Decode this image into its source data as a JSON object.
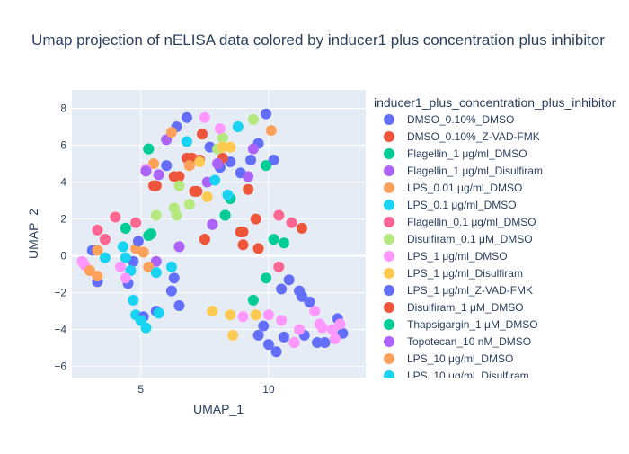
{
  "chart_data": {
    "type": "scatter",
    "title": "Umap projection of nELISA data colored by inducer1 plus concentration plus inhibitor",
    "xlabel": "UMAP_1",
    "ylabel": "UMAP_2",
    "xlim": [
      2.3,
      13.8
    ],
    "ylim": [
      -6.6,
      9.0
    ],
    "xticks": [
      5,
      10
    ],
    "yticks": [
      -6,
      -4,
      -2,
      0,
      2,
      4,
      6,
      8
    ],
    "grid": true,
    "legend_title": "inducer1_plus_concentration_plus_inhibitor",
    "legend_position": "right",
    "series": [
      {
        "name": "DMSO_0.10%_DMSO",
        "color": "#636efa",
        "points": [
          [
            3.1,
            0.3
          ],
          [
            3.3,
            -1.4
          ],
          [
            4.7,
            -0.3
          ],
          [
            6.0,
            4.9
          ],
          [
            6.4,
            7.0
          ],
          [
            6.8,
            7.5
          ],
          [
            7.7,
            5.9
          ],
          [
            8.1,
            4.8
          ],
          [
            8.5,
            5.1
          ],
          [
            8.9,
            4.5
          ],
          [
            9.3,
            5.2
          ],
          [
            9.6,
            6.1
          ],
          [
            9.9,
            7.7
          ],
          [
            10.2,
            5.2
          ],
          [
            6.2,
            -1.9
          ],
          [
            10.5,
            -1.8
          ],
          [
            11.2,
            -1.9
          ],
          [
            12.2,
            -4.7
          ],
          [
            12.7,
            -3.4
          ],
          [
            12.9,
            -4.2
          ],
          [
            10.6,
            -4.4
          ],
          [
            11.0,
            -4.7
          ],
          [
            11.4,
            -4.3
          ],
          [
            10.0,
            -4.8
          ],
          [
            10.3,
            -5.2
          ],
          [
            4.5,
            -1.5
          ]
        ]
      },
      {
        "name": "DMSO_0.10%_Z-VAD-FMK",
        "color": "#ef553b",
        "points": [
          [
            5.5,
            3.8
          ],
          [
            6.5,
            4.3
          ],
          [
            7.0,
            5.3
          ],
          [
            7.2,
            3.5
          ],
          [
            7.3,
            5.2
          ],
          [
            7.4,
            6.6
          ],
          [
            7.5,
            0.9
          ],
          [
            8.2,
            5.3
          ],
          [
            9.2,
            3.6
          ],
          [
            9.5,
            2.0
          ],
          [
            9.0,
            1.3
          ],
          [
            9.6,
            0.4
          ],
          [
            9.0,
            0.6
          ],
          [
            11.3,
            1.5
          ],
          [
            6.8,
            5.3
          ]
        ]
      },
      {
        "name": "Flagellin_1 μg/ml_DMSO",
        "color": "#00cc96",
        "points": [
          [
            5.3,
            5.8
          ],
          [
            5.3,
            1.1
          ],
          [
            5.4,
            1.2
          ],
          [
            4.4,
            1.5
          ],
          [
            8.5,
            3.1
          ],
          [
            8.3,
            2.2
          ],
          [
            9.9,
            4.9
          ],
          [
            10.2,
            0.9
          ],
          [
            10.6,
            0.7
          ],
          [
            9.9,
            -1.2
          ],
          [
            9.4,
            -2.4
          ]
        ]
      },
      {
        "name": "Flagellin_1 μg/ml_Disulfiram",
        "color": "#ab63fa",
        "points": [
          [
            5.2,
            4.6
          ],
          [
            5.7,
            4.4
          ],
          [
            6.0,
            6.3
          ],
          [
            6.5,
            0.5
          ],
          [
            7.6,
            4.0
          ],
          [
            7.8,
            1.7
          ],
          [
            8.0,
            5.0
          ],
          [
            9.2,
            4.3
          ],
          [
            9.4,
            5.8
          ],
          [
            5.6,
            -0.3
          ]
        ]
      },
      {
        "name": "LPS_0.01 μg/ml_DMSO",
        "color": "#ffa15a",
        "points": [
          [
            3.0,
            -0.8
          ],
          [
            3.3,
            -1.1
          ],
          [
            3.6,
            0.9
          ],
          [
            4.8,
            0.4
          ],
          [
            5.1,
            0.2
          ],
          [
            5.3,
            -0.6
          ],
          [
            5.5,
            5.0
          ],
          [
            6.2,
            6.7
          ],
          [
            6.9,
            4.9
          ],
          [
            10.1,
            6.8
          ],
          [
            3.3,
            0.3
          ]
        ]
      },
      {
        "name": "LPS_0.1 μg/ml_DMSO",
        "color": "#19d3f3",
        "points": [
          [
            3.6,
            -0.1
          ],
          [
            4.3,
            0.5
          ],
          [
            4.6,
            -0.8
          ],
          [
            4.7,
            -2.4
          ],
          [
            4.8,
            -3.2
          ],
          [
            5.0,
            -3.5
          ],
          [
            5.2,
            -3.9
          ],
          [
            5.6,
            -0.9
          ],
          [
            5.7,
            -3.1
          ],
          [
            6.2,
            -0.6
          ],
          [
            6.8,
            6.2
          ],
          [
            7.9,
            4.1
          ],
          [
            8.4,
            3.3
          ],
          [
            8.8,
            7.0
          ],
          [
            4.4,
            -0.1
          ]
        ]
      },
      {
        "name": "Flagellin_0.1 μg/ml_DMSO",
        "color": "#ff6692",
        "points": [
          [
            3.3,
            1.4
          ],
          [
            3.6,
            0.9
          ],
          [
            4.0,
            2.1
          ],
          [
            4.8,
            1.8
          ],
          [
            10.4,
            -0.6
          ],
          [
            10.4,
            2.2
          ],
          [
            10.9,
            1.8
          ]
        ]
      },
      {
        "name": "Disulfiram_0.1 μM_DMSO",
        "color": "#b6e880",
        "points": [
          [
            5.6,
            2.2
          ],
          [
            6.3,
            2.6
          ],
          [
            6.4,
            2.2
          ],
          [
            6.5,
            3.8
          ],
          [
            6.9,
            2.8
          ],
          [
            8.2,
            6.4
          ],
          [
            9.4,
            7.4
          ],
          [
            8.0,
            5.8
          ]
        ]
      },
      {
        "name": "LPS_1 μg/ml_DMSO",
        "color": "#ff97ff",
        "points": [
          [
            2.7,
            -0.3
          ],
          [
            2.8,
            -0.5
          ],
          [
            4.2,
            -0.6
          ],
          [
            4.4,
            -1.2
          ],
          [
            5.2,
            4.7
          ],
          [
            7.5,
            7.5
          ],
          [
            8.1,
            6.9
          ],
          [
            10.0,
            -3.2
          ],
          [
            10.5,
            -3.5
          ],
          [
            11.0,
            -4.7
          ],
          [
            11.2,
            -4.0
          ],
          [
            11.8,
            -3.0
          ],
          [
            12.0,
            -3.7
          ],
          [
            12.1,
            -3.9
          ],
          [
            12.5,
            -4.0
          ],
          [
            12.6,
            -4.5
          ],
          [
            12.8,
            -3.7
          ],
          [
            9.0,
            -3.3
          ]
        ]
      },
      {
        "name": "LPS_1 μg/ml_Disulfiram",
        "color": "#fecb52",
        "points": [
          [
            7.8,
            -3.0
          ],
          [
            8.5,
            -3.2
          ],
          [
            8.6,
            -4.3
          ],
          [
            9.5,
            -3.2
          ],
          [
            7.6,
            3.2
          ],
          [
            7.3,
            5.1
          ],
          [
            8.2,
            5.9
          ],
          [
            8.5,
            5.9
          ]
        ]
      },
      {
        "name": "LPS_1 μg/ml_Z-VAD-FMK",
        "color": "#636efa",
        "points": [
          [
            4.9,
            0.8
          ],
          [
            5.1,
            -3.3
          ],
          [
            5.6,
            -3.0
          ],
          [
            6.3,
            -1.2
          ],
          [
            6.5,
            -2.7
          ],
          [
            9.6,
            -4.3
          ],
          [
            9.8,
            -3.8
          ],
          [
            10.8,
            -1.3
          ],
          [
            11.3,
            -2.2
          ],
          [
            11.6,
            -2.5
          ],
          [
            11.9,
            -4.7
          ]
        ]
      },
      {
        "name": "Disulfiram_1 μM_DMSO",
        "color": "#ef553b",
        "points": [
          [
            5.6,
            3.8
          ],
          [
            6.3,
            4.3
          ],
          [
            7.1,
            3.5
          ],
          [
            7.5,
            0.9
          ],
          [
            8.9,
            1.3
          ]
        ]
      },
      {
        "name": "Thapsigargin_1 μM_DMSO",
        "color": "#00cc96",
        "points": [
          [
            5.3,
            5.8
          ],
          [
            4.4,
            1.5
          ],
          [
            8.3,
            2.2
          ]
        ]
      },
      {
        "name": "Topotecan_10 nM_DMSO",
        "color": "#ab63fa",
        "points": [
          [
            5.2,
            4.6
          ],
          [
            6.5,
            0.5
          ],
          [
            7.8,
            1.7
          ]
        ]
      },
      {
        "name": "LPS_10 μg/ml_DMSO",
        "color": "#ffa15a",
        "points": [
          [
            3.0,
            -0.8
          ],
          [
            5.1,
            0.2
          ],
          [
            6.9,
            4.9
          ]
        ]
      },
      {
        "name": "LPS_10 μg/ml_Disulfiram",
        "color": "#19d3f3",
        "points": [
          [
            5.0,
            -3.5
          ],
          [
            5.7,
            -3.1
          ],
          [
            8.8,
            7.0
          ]
        ]
      }
    ]
  }
}
